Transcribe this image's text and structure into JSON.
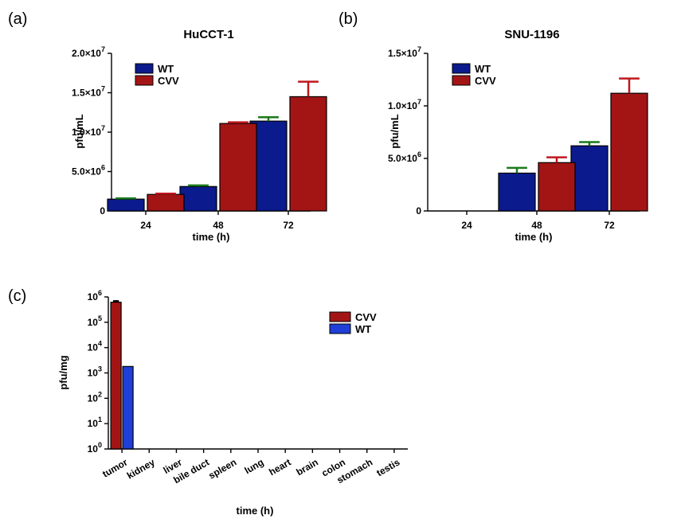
{
  "chart_data": [
    {
      "panel_label": "(a)",
      "type": "bar",
      "title": "HuCCT-1",
      "xlabel": "time (h)",
      "ylabel": "pfu/mL",
      "ylim": [
        0,
        20000000
      ],
      "categories": [
        "24",
        "48",
        "72"
      ],
      "yticks": [
        {
          "value": 0,
          "base": "0",
          "exp": ""
        },
        {
          "value": 5000000,
          "base": "5.0×10",
          "exp": "6"
        },
        {
          "value": 10000000,
          "base": "1.0×10",
          "exp": "7"
        },
        {
          "value": 15000000,
          "base": "1.5×10",
          "exp": "7"
        },
        {
          "value": 20000000,
          "base": "2.0×10",
          "exp": "7"
        }
      ],
      "series": [
        {
          "name": "WT",
          "color": "#0b1a8c",
          "error_color": "#1a7a1a",
          "values": [
            1500000,
            3100000,
            11400000
          ],
          "errors": [
            100000,
            150000,
            500000
          ]
        },
        {
          "name": "CVV",
          "color": "#a31515",
          "error_color": "#c0161d",
          "values": [
            2100000,
            11100000,
            14500000
          ],
          "errors": [
            100000,
            150000,
            1900000
          ]
        }
      ],
      "legend_label_color": {
        "WT": "#1a7a1a",
        "CVV": "#c0161d"
      },
      "legend": "top-left"
    },
    {
      "panel_label": "(b)",
      "type": "bar",
      "title": "SNU-1196",
      "xlabel": "time (h)",
      "ylabel": "pfu/mL",
      "ylim": [
        0,
        15000000
      ],
      "categories": [
        "24",
        "48",
        "72"
      ],
      "yticks": [
        {
          "value": 0,
          "base": "0",
          "exp": ""
        },
        {
          "value": 5000000,
          "base": "5.0×10",
          "exp": "6"
        },
        {
          "value": 10000000,
          "base": "1.0×10",
          "exp": "7"
        },
        {
          "value": 15000000,
          "base": "1.5×10",
          "exp": "7"
        }
      ],
      "series": [
        {
          "name": "WT",
          "color": "#0b1a8c",
          "error_color": "#1a7a1a",
          "values": [
            0,
            3600000,
            6200000
          ],
          "errors": [
            0,
            500000,
            350000
          ]
        },
        {
          "name": "CVV",
          "color": "#a31515",
          "error_color": "#c0161d",
          "values": [
            0,
            4600000,
            11200000
          ],
          "errors": [
            0,
            500000,
            1400000
          ]
        }
      ],
      "legend_label_color": {
        "WT": "#1a7a1a",
        "CVV": "#c0161d"
      },
      "legend": "top-left"
    },
    {
      "panel_label": "(c)",
      "type": "bar",
      "title": "",
      "xlabel": "time (h)",
      "ylabel": "pfu/mg",
      "yscale": "log",
      "ylim": [
        1,
        1000000
      ],
      "categories": [
        "tumor",
        "kidney",
        "liver",
        "bile duct",
        "spleen",
        "lung",
        "heart",
        "brain",
        "colon",
        "stomach",
        "testis"
      ],
      "yticks": [
        {
          "value": 1,
          "base": "10",
          "exp": "0"
        },
        {
          "value": 10,
          "base": "10",
          "exp": "1"
        },
        {
          "value": 100,
          "base": "10",
          "exp": "2"
        },
        {
          "value": 1000,
          "base": "10",
          "exp": "3"
        },
        {
          "value": 10000,
          "base": "10",
          "exp": "4"
        },
        {
          "value": 100000,
          "base": "10",
          "exp": "5"
        },
        {
          "value": 1000000,
          "base": "10",
          "exp": "6"
        }
      ],
      "series": [
        {
          "name": "CVV",
          "color": "#a31515",
          "error_color": "#000000",
          "values": [
            620000,
            1,
            1,
            1,
            1,
            1,
            1,
            1,
            1,
            1,
            1
          ],
          "errors": [
            60000,
            0,
            0,
            0,
            0,
            0,
            0,
            0,
            0,
            0,
            0
          ]
        },
        {
          "name": "WT",
          "color": "#1f3fd8",
          "error_color": "#000000",
          "values": [
            1800,
            1,
            1,
            1,
            1,
            1,
            1,
            1,
            1,
            1,
            1
          ],
          "errors": [
            0,
            0,
            0,
            0,
            0,
            0,
            0,
            0,
            0,
            0,
            0
          ]
        }
      ],
      "legend_label_color": {
        "CVV": "#a31515",
        "WT": "#000000"
      },
      "legend": "top-right"
    }
  ]
}
